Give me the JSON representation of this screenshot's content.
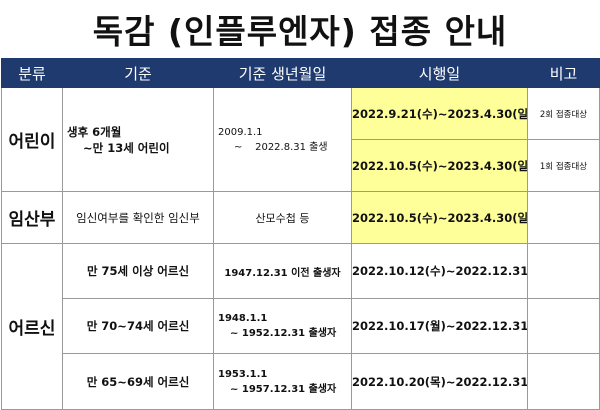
{
  "title": "독감 (인플루엔자) 접종 안내",
  "headers": [
    "분류",
    "기준",
    "기준 생년월일",
    "시행일",
    "비고"
  ],
  "groups": {
    "children": {
      "category": "어린이",
      "criteria_line1": "생후 6개월",
      "criteria_line2": "~만 13세 어린이",
      "dob_line1": "2009.1.1",
      "dob_line2": "~    2022.8.31 출생",
      "rows": [
        {
          "period": "2022.9.21(수)~2023.4.30(일)",
          "note": "2회 접종대상"
        },
        {
          "period": "2022.10.5(수)~2023.4.30(일)",
          "note": "1회 접종대상"
        }
      ]
    },
    "pregnant": {
      "category": "임산부",
      "criteria": "임신여부를 확인한 임신부",
      "dob": "산모수첩 등",
      "period": "2022.10.5(수)~2023.4.30(일)",
      "note": ""
    },
    "elderly": {
      "category": "어르신",
      "rows": [
        {
          "criteria": "만 75세 이상 어르신",
          "dob_line1": "1947.12.31 이전 출생자",
          "dob_line2": "",
          "period": "2022.10.12(수)~2022.12.31(토)",
          "note": ""
        },
        {
          "criteria": "만 70~74세 어르신",
          "dob_line1": "1948.1.1",
          "dob_line2": "~ 1952.12.31 출생자",
          "period": "2022.10.17(월)~2022.12.31(토)",
          "note": ""
        },
        {
          "criteria": "만 65~69세 어르신",
          "dob_line1": "1953.1.1",
          "dob_line2": "~ 1957.12.31 출생자",
          "period": "2022.10.20(목)~2022.12.31(토)",
          "note": ""
        }
      ]
    }
  },
  "colors": {
    "header_bg": "#1f3a6e",
    "period_bg": "#ffff99"
  }
}
